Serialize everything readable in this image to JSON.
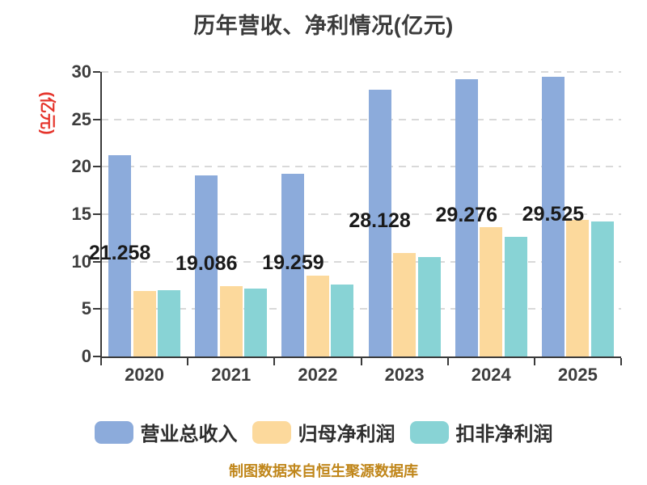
{
  "chart_data": {
    "type": "bar",
    "title": "历年营收、净利情况(亿元)",
    "y_unit_label": "(亿元)",
    "categories": [
      "2020",
      "2021",
      "2022",
      "2023",
      "2024",
      "2025"
    ],
    "series": [
      {
        "key": "revenue",
        "name": "营业总收入",
        "color": "#8CABDB",
        "values": [
          21.258,
          19.086,
          19.259,
          28.128,
          29.276,
          29.525
        ],
        "value_labels": [
          "21.258",
          "19.086",
          "19.259",
          "28.128",
          "29.276",
          "29.525"
        ]
      },
      {
        "key": "net-profit",
        "name": "归母净利润",
        "color": "#FCD99C",
        "values": [
          6.9,
          7.4,
          8.5,
          10.9,
          13.6,
          14.4
        ]
      },
      {
        "key": "non-gaap-net-profit",
        "name": "扣非净利润",
        "color": "#88D3D5",
        "values": [
          7.0,
          7.2,
          7.6,
          10.5,
          12.6,
          14.2
        ]
      }
    ],
    "ylim": [
      0,
      30
    ],
    "y_ticks": [
      0,
      5,
      10,
      15,
      20,
      25,
      30
    ],
    "grid": "horizontal-dashed",
    "legend_position": "bottom"
  },
  "footer": {
    "text": "制图数据来自恒生聚源数据库"
  },
  "colors": {
    "axis": "#3A3A3A",
    "grid": "#D9D9D9",
    "title": "#3B3B3B",
    "tick_label": "#3D3D3D",
    "bar_label": "#1A1A1A",
    "unit_label": "#E5342B",
    "legend_text": "#2E2E2E",
    "footer": "#C0861A"
  }
}
